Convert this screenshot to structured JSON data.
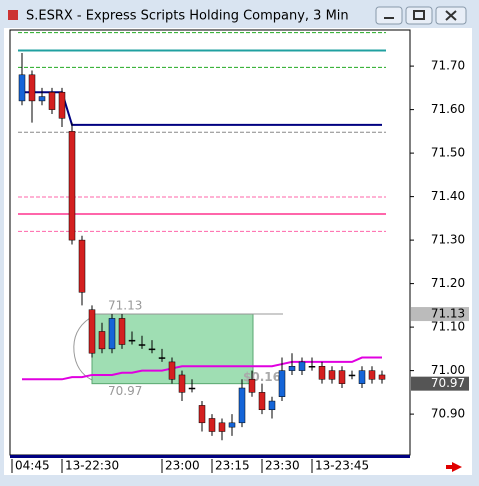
{
  "window_title": "S.ESRX - Express Scripts Holding Company, 3 Min",
  "chart_data": {
    "type": "candlestick",
    "categories": [
      "04:45",
      null,
      null,
      null,
      null,
      "13-22:30",
      null,
      null,
      null,
      null,
      null,
      null,
      null,
      null,
      null,
      "23:00",
      null,
      null,
      null,
      null,
      "23:15",
      null,
      null,
      null,
      null,
      "23:30",
      null,
      null,
      null,
      null,
      "13-23:45",
      null,
      null,
      null,
      null,
      null,
      null
    ],
    "open": [
      71.62,
      71.68,
      71.62,
      71.64,
      71.64,
      71.55,
      71.3,
      71.14,
      71.09,
      71.05,
      71.12,
      71.07,
      71.06,
      71.05,
      71.03,
      71.02,
      70.99,
      70.96,
      70.92,
      70.89,
      70.88,
      70.87,
      70.88,
      70.98,
      70.95,
      70.91,
      70.94,
      71.0,
      71.0,
      71.01,
      71.01,
      71.0,
      71.0,
      70.99,
      70.97,
      71.0,
      70.99
    ],
    "high": [
      71.73,
      71.69,
      71.65,
      71.65,
      71.65,
      71.57,
      71.31,
      71.15,
      71.11,
      71.13,
      71.13,
      71.09,
      71.08,
      71.07,
      71.05,
      71.03,
      71.0,
      70.98,
      70.93,
      70.9,
      70.89,
      70.9,
      70.98,
      71.0,
      70.97,
      70.94,
      71.03,
      71.04,
      71.03,
      71.03,
      71.02,
      71.01,
      71.01,
      71.0,
      71.01,
      71.01,
      71.0
    ],
    "low": [
      71.61,
      71.57,
      71.61,
      71.59,
      71.56,
      71.29,
      71.15,
      71.03,
      71.04,
      71.04,
      71.05,
      71.06,
      71.05,
      71.04,
      71.02,
      70.97,
      70.93,
      70.95,
      70.86,
      70.85,
      70.84,
      70.85,
      70.87,
      70.94,
      70.9,
      70.89,
      70.93,
      70.99,
      70.99,
      71.0,
      70.97,
      70.97,
      70.96,
      70.98,
      70.96,
      70.97,
      70.97
    ],
    "close": [
      71.68,
      71.62,
      71.63,
      71.6,
      71.58,
      71.3,
      71.18,
      71.04,
      71.05,
      71.12,
      71.06,
      71.07,
      71.06,
      71.05,
      71.03,
      70.98,
      70.95,
      70.96,
      70.88,
      70.86,
      70.86,
      70.88,
      70.96,
      70.95,
      70.91,
      70.93,
      71.0,
      71.01,
      71.02,
      71.01,
      70.98,
      70.98,
      70.97,
      70.99,
      71.0,
      70.98,
      70.98
    ],
    "up_color": "#1565d8",
    "down_color": "#d42020",
    "series": [
      {
        "color": "#000080",
        "values": [
          71.64,
          71.64,
          71.64,
          71.64,
          71.64,
          71.565,
          71.565,
          71.565,
          71.565,
          71.565,
          71.565,
          71.565,
          71.565,
          71.565,
          71.565,
          71.565,
          71.565,
          71.565,
          71.565,
          71.565,
          71.565,
          71.565,
          71.565,
          71.565,
          71.565,
          71.565,
          71.565,
          71.565,
          71.565,
          71.565,
          71.565,
          71.565,
          71.565,
          71.565,
          71.565,
          71.565,
          71.565
        ]
      },
      {
        "color": "#e000e0",
        "values": [
          70.98,
          70.98,
          70.98,
          70.98,
          70.98,
          70.985,
          70.985,
          70.99,
          70.99,
          70.99,
          70.995,
          70.995,
          71.0,
          71.0,
          71.0,
          71.005,
          71.01,
          71.01,
          71.01,
          71.01,
          71.01,
          71.01,
          71.01,
          71.01,
          71.01,
          71.01,
          71.015,
          71.02,
          71.02,
          71.02,
          71.02,
          71.02,
          71.02,
          71.02,
          71.03,
          71.03,
          71.03
        ]
      }
    ],
    "levels": [
      {
        "value": 71.777,
        "color": "#22aa22",
        "style": "dashed"
      },
      {
        "value": 71.736,
        "color": "#20a0a0",
        "style": "solid"
      },
      {
        "value": 71.697,
        "color": "#22aa22",
        "style": "dashed"
      },
      {
        "value": 71.548,
        "color": "#888888",
        "style": "dashed"
      },
      {
        "value": 71.399,
        "color": "#ff66aa",
        "style": "dashed"
      },
      {
        "value": 71.36,
        "color": "#ff66aa",
        "style": "solid"
      },
      {
        "value": 71.32,
        "color": "#ff66aa",
        "style": "dashed"
      }
    ],
    "box": {
      "start": 7,
      "end": 23,
      "top": 71.13,
      "bottom": 70.97,
      "label": "$0.16",
      "color": "#7fd39a"
    },
    "ylim": [
      70.806,
      71.783
    ],
    "yticks": [
      {
        "value": 71.7,
        "label": "71.70"
      },
      {
        "value": 71.6,
        "label": "71.60"
      },
      {
        "value": 71.5,
        "label": "71.50"
      },
      {
        "value": 71.4,
        "label": "71.40"
      },
      {
        "value": 71.3,
        "label": "71.30"
      },
      {
        "value": 71.2,
        "label": "71.20"
      },
      {
        "value": 71.1,
        "label": "71.10"
      },
      {
        "value": 71.0,
        "label": "71.00"
      },
      {
        "value": 70.9,
        "label": "70.90"
      }
    ],
    "price_markers": [
      {
        "value": 71.13,
        "label": "71.13"
      },
      {
        "value": 70.97,
        "label": "70.97"
      }
    ]
  }
}
